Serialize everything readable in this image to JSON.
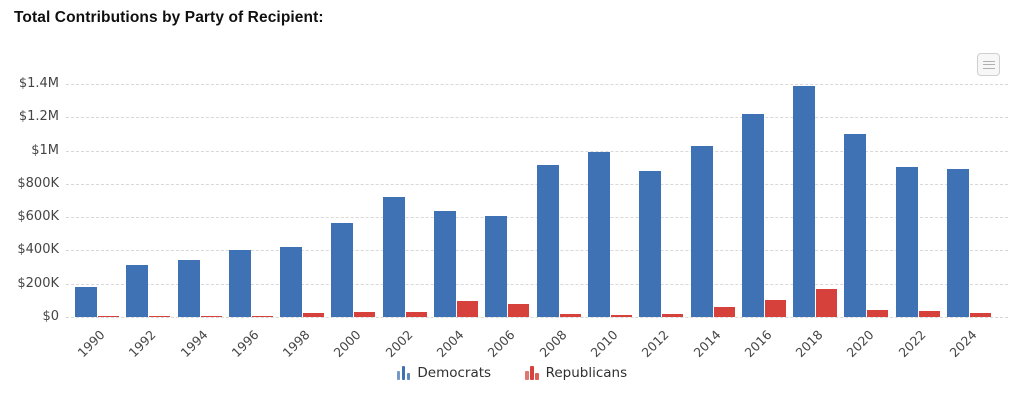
{
  "title": "Total Contributions by Party of Recipient:",
  "icons": {
    "menu_button": "hamburger-icon",
    "democrats_marker": "mini-bar-chart-icon",
    "republicans_marker": "mini-bar-chart-icon"
  },
  "colors": {
    "democrats": "#3F72B4",
    "republicans": "#D6423B",
    "gridline": "#D8D8D8",
    "axis_label": "#454545",
    "title_text": "#101010"
  },
  "legend": {
    "position": "bottom",
    "items": [
      {
        "label": "Democrats"
      },
      {
        "label": "Republicans"
      }
    ]
  },
  "chart_data": {
    "type": "bar",
    "title": "Total Contributions by Party of Recipient:",
    "categories": [
      "1990",
      "1992",
      "1994",
      "1996",
      "1998",
      "2000",
      "2002",
      "2004",
      "2006",
      "2008",
      "2010",
      "2012",
      "2014",
      "2016",
      "2018",
      "2020",
      "2022",
      "2024"
    ],
    "series": [
      {
        "name": "Democrats",
        "color": "#3F72B4",
        "values": [
          180000,
          310000,
          340000,
          405000,
          420000,
          565000,
          720000,
          640000,
          605000,
          915000,
          990000,
          875000,
          1030000,
          1220000,
          1390000,
          1100000,
          900000,
          890000
        ]
      },
      {
        "name": "Republicans",
        "color": "#D6423B",
        "values": [
          6000,
          3000,
          8000,
          6000,
          25000,
          32000,
          28000,
          95000,
          80000,
          20000,
          12000,
          18000,
          60000,
          100000,
          170000,
          45000,
          38000,
          26000
        ]
      }
    ],
    "xlabel": "",
    "ylabel": "",
    "ylim": [
      0,
      1400000
    ],
    "yticks": [
      {
        "value": 0,
        "label": "$0"
      },
      {
        "value": 200000,
        "label": "$200K"
      },
      {
        "value": 400000,
        "label": "$400K"
      },
      {
        "value": 600000,
        "label": "$600K"
      },
      {
        "value": 800000,
        "label": "$800K"
      },
      {
        "value": 1000000,
        "label": "$1M"
      },
      {
        "value": 1200000,
        "label": "$1.2M"
      },
      {
        "value": 1400000,
        "label": "$1.4M"
      }
    ],
    "grid": "horizontal-dashed",
    "legend_position": "bottom"
  }
}
